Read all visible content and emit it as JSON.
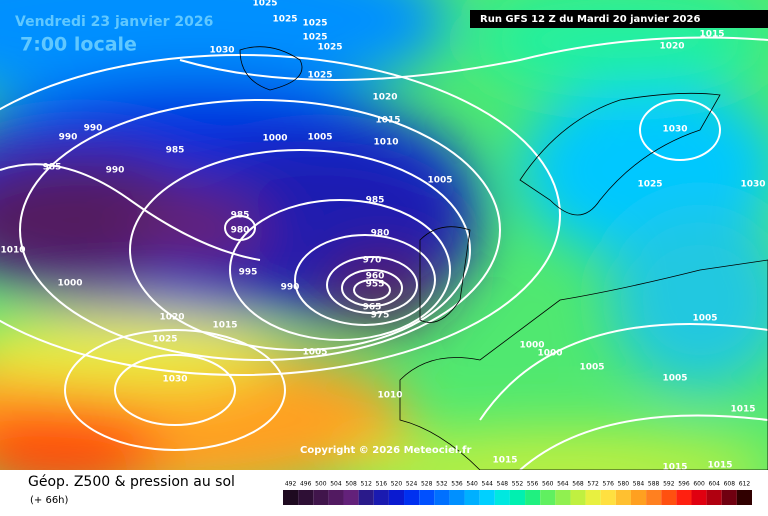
{
  "header": {
    "date": "Vendredi 23 janvier 2026",
    "time": "7:00 locale",
    "run": "Run GFS 12 Z du Mardi 20 janvier 2026"
  },
  "copyright": "Copyright © 2026 Meteociel.fr",
  "footer": {
    "title": "Géop. Z500 & pression au sol",
    "subtitle": "(+ 66h)"
  },
  "legend": {
    "labels": [
      492,
      496,
      500,
      504,
      508,
      512,
      516,
      520,
      524,
      528,
      532,
      536,
      540,
      544,
      548,
      552,
      556,
      560,
      564,
      568,
      572,
      576,
      580,
      584,
      588,
      592,
      596,
      600,
      604,
      608,
      612
    ],
    "colors": [
      "#1e0a20",
      "#2e0f35",
      "#40154b",
      "#521a61",
      "#63217a",
      "#2a1a8a",
      "#1a1ab0",
      "#0a1ad0",
      "#0030f0",
      "#0050ff",
      "#0070ff",
      "#0090ff",
      "#00b0ff",
      "#00d0ff",
      "#00e8e0",
      "#00f0b0",
      "#20f080",
      "#60f060",
      "#90f050",
      "#c0f040",
      "#e8f040",
      "#ffe040",
      "#ffc030",
      "#ffa020",
      "#ff8020",
      "#ff5010",
      "#ff2010",
      "#e00010",
      "#b00010",
      "#700010",
      "#300000"
    ]
  },
  "isobar_labels": [
    "1025",
    "1025",
    "1025",
    "1025",
    "1025",
    "1030",
    "1025",
    "1020",
    "1015",
    "1010",
    "1005",
    "1000",
    "990",
    "990",
    "985",
    "985",
    "990",
    "1005",
    "985",
    "985",
    "980",
    "980",
    "1010",
    "995",
    "970",
    "960",
    "955",
    "965",
    "975",
    "990",
    "1000",
    "1020",
    "1015",
    "1025",
    "1005",
    "1030",
    "1010",
    "1000",
    "1000",
    "1005",
    "1005",
    "1005",
    "1015",
    "1015",
    "1015",
    "1015",
    "1020",
    "1015",
    "1030",
    "1025",
    "1030"
  ]
}
